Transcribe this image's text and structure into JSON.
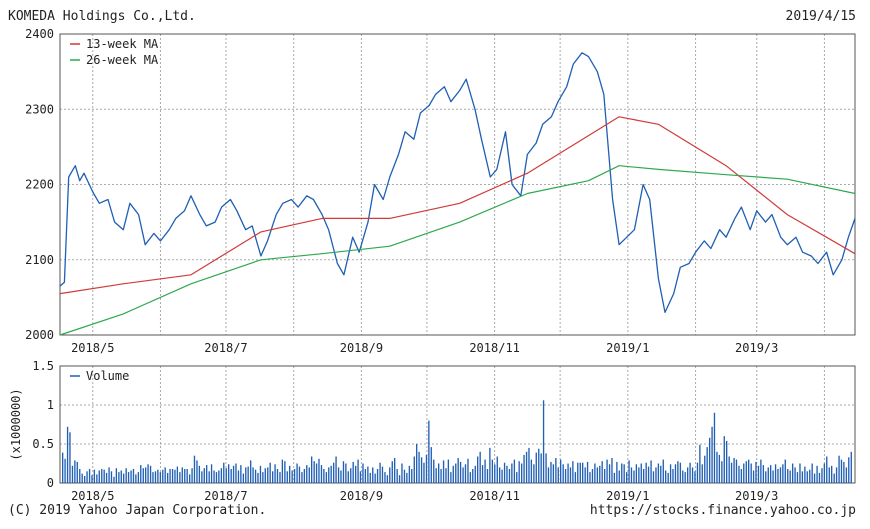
{
  "header": {
    "company": "KOMEDA Holdings Co.,Ltd.",
    "date": "2019/4/15"
  },
  "footer": {
    "copyright": "(C) 2019 Yahoo Japan Corporation.",
    "url": "https://stocks.finance.yahoo.co.jp"
  },
  "colors": {
    "price": "#1f5fb4",
    "ma13": "#d13a3a",
    "ma26": "#2ea84e",
    "volume": "#1f5fb4",
    "grid": "#aaaaaa",
    "frame": "#555555"
  },
  "chart_data": [
    {
      "type": "line",
      "x_ticks": [
        "2018/5",
        "2018/7",
        "2018/9",
        "2018/11",
        "2019/1",
        "2019/3"
      ],
      "y_ticks": [
        "2000",
        "2100",
        "2200",
        "2300",
        "2400"
      ],
      "ylim": [
        2000,
        2400
      ],
      "legend": [
        "13-week MA",
        "26-week MA"
      ],
      "x_range": [
        "2018/4/16",
        "2019/4/15"
      ],
      "series": [
        {
          "name": "Price",
          "x": [
            "2018/4/16",
            "2018/4/18",
            "2018/4/20",
            "2018/4/23",
            "2018/4/25",
            "2018/4/27",
            "2018/5/1",
            "2018/5/4",
            "2018/5/8",
            "2018/5/11",
            "2018/5/15",
            "2018/5/18",
            "2018/5/22",
            "2018/5/25",
            "2018/5/29",
            "2018/6/1",
            "2018/6/5",
            "2018/6/8",
            "2018/6/12",
            "2018/6/15",
            "2018/6/19",
            "2018/6/22",
            "2018/6/26",
            "2018/6/29",
            "2018/7/3",
            "2018/7/6",
            "2018/7/10",
            "2018/7/13",
            "2018/7/17",
            "2018/7/20",
            "2018/7/24",
            "2018/7/27",
            "2018/7/31",
            "2018/8/3",
            "2018/8/7",
            "2018/8/10",
            "2018/8/14",
            "2018/8/17",
            "2018/8/21",
            "2018/8/24",
            "2018/8/28",
            "2018/8/31",
            "2018/9/4",
            "2018/9/7",
            "2018/9/11",
            "2018/9/14",
            "2018/9/18",
            "2018/9/21",
            "2018/9/25",
            "2018/9/28",
            "2018/10/2",
            "2018/10/5",
            "2018/10/9",
            "2018/10/12",
            "2018/10/16",
            "2018/10/19",
            "2018/10/23",
            "2018/10/26",
            "2018/10/30",
            "2018/11/2",
            "2018/11/6",
            "2018/11/9",
            "2018/11/13",
            "2018/11/16",
            "2018/11/20",
            "2018/11/23",
            "2018/11/27",
            "2018/11/30",
            "2018/12/4",
            "2018/12/7",
            "2018/12/11",
            "2018/12/14",
            "2018/12/18",
            "2018/12/21",
            "2018/12/25",
            "2018/12/28",
            "2019/1/4",
            "2019/1/8",
            "2019/1/11",
            "2019/1/15",
            "2019/1/18",
            "2019/1/22",
            "2019/1/25",
            "2019/1/29",
            "2019/2/1",
            "2019/2/5",
            "2019/2/8",
            "2019/2/12",
            "2019/2/15",
            "2019/2/19",
            "2019/2/22",
            "2019/2/26",
            "2019/3/1",
            "2019/3/5",
            "2019/3/8",
            "2019/3/12",
            "2019/3/15",
            "2019/3/19",
            "2019/3/22",
            "2019/3/26",
            "2019/3/29",
            "2019/4/2",
            "2019/4/5",
            "2019/4/9",
            "2019/4/12",
            "2019/4/15"
          ],
          "y": [
            2065,
            2070,
            2210,
            2225,
            2205,
            2215,
            2190,
            2175,
            2180,
            2150,
            2140,
            2175,
            2160,
            2120,
            2135,
            2125,
            2140,
            2155,
            2165,
            2185,
            2160,
            2145,
            2150,
            2170,
            2180,
            2165,
            2140,
            2145,
            2105,
            2125,
            2160,
            2175,
            2180,
            2170,
            2185,
            2180,
            2160,
            2140,
            2095,
            2080,
            2130,
            2110,
            2150,
            2200,
            2180,
            2210,
            2240,
            2270,
            2260,
            2295,
            2305,
            2320,
            2330,
            2310,
            2325,
            2340,
            2300,
            2260,
            2210,
            2220,
            2270,
            2200,
            2185,
            2240,
            2255,
            2280,
            2290,
            2310,
            2330,
            2360,
            2375,
            2370,
            2350,
            2320,
            2180,
            2120,
            2140,
            2200,
            2180,
            2075,
            2030,
            2055,
            2090,
            2095,
            2110,
            2125,
            2115,
            2140,
            2130,
            2155,
            2170,
            2140,
            2165,
            2150,
            2160,
            2130,
            2120,
            2130,
            2110,
            2105,
            2095,
            2110,
            2080,
            2100,
            2130,
            2155
          ]
        },
        {
          "name": "13-week MA",
          "x": [
            "2018/4/16",
            "2018/5/15",
            "2018/6/15",
            "2018/7/17",
            "2018/8/14",
            "2018/9/14",
            "2018/10/16",
            "2018/11/16",
            "2018/12/14",
            "2018/12/28",
            "2019/1/15",
            "2019/2/15",
            "2019/3/15",
            "2019/4/15"
          ],
          "y": [
            2055,
            2068,
            2080,
            2137,
            2155,
            2155,
            2175,
            2215,
            2265,
            2290,
            2280,
            2225,
            2160,
            2108
          ]
        },
        {
          "name": "26-week MA",
          "x": [
            "2018/4/16",
            "2018/5/15",
            "2018/6/15",
            "2018/7/17",
            "2018/8/14",
            "2018/9/14",
            "2018/10/16",
            "2018/11/16",
            "2018/12/14",
            "2018/12/28",
            "2019/1/15",
            "2019/2/15",
            "2019/3/15",
            "2019/4/15"
          ],
          "y": [
            2000,
            2028,
            2068,
            2100,
            2108,
            2118,
            2150,
            2188,
            2205,
            2225,
            2220,
            2213,
            2207,
            2188
          ]
        }
      ]
    },
    {
      "type": "bar",
      "x_ticks": [
        "2018/5",
        "2018/7",
        "2018/9",
        "2018/11",
        "2019/1",
        "2019/3"
      ],
      "y_ticks": [
        "0",
        "0.5",
        "1",
        "1.5"
      ],
      "ylabel": "(x1000000)",
      "ylim": [
        0,
        1.5
      ],
      "legend": [
        "Volume"
      ],
      "x_range": [
        "2018/4/16",
        "2019/4/15"
      ],
      "series": [
        {
          "name": "Volume",
          "values": [
            0.39,
            0.31,
            0.72,
            0.65,
            0.22,
            0.29,
            0.27,
            0.18,
            0.12,
            0.09,
            0.15,
            0.18,
            0.1,
            0.17,
            0.11,
            0.16,
            0.18,
            0.17,
            0.13,
            0.2,
            0.15,
            0.08,
            0.19,
            0.14,
            0.16,
            0.12,
            0.19,
            0.14,
            0.16,
            0.18,
            0.11,
            0.14,
            0.23,
            0.19,
            0.2,
            0.24,
            0.22,
            0.14,
            0.15,
            0.17,
            0.14,
            0.17,
            0.2,
            0.13,
            0.18,
            0.18,
            0.17,
            0.21,
            0.14,
            0.2,
            0.18,
            0.18,
            0.11,
            0.19,
            0.35,
            0.29,
            0.22,
            0.15,
            0.19,
            0.23,
            0.15,
            0.24,
            0.16,
            0.14,
            0.16,
            0.19,
            0.26,
            0.19,
            0.24,
            0.18,
            0.22,
            0.25,
            0.16,
            0.23,
            0.12,
            0.2,
            0.21,
            0.29,
            0.2,
            0.17,
            0.13,
            0.22,
            0.14,
            0.19,
            0.2,
            0.26,
            0.15,
            0.24,
            0.18,
            0.14,
            0.3,
            0.28,
            0.15,
            0.22,
            0.16,
            0.18,
            0.25,
            0.21,
            0.14,
            0.18,
            0.23,
            0.2,
            0.34,
            0.28,
            0.25,
            0.31,
            0.23,
            0.18,
            0.14,
            0.2,
            0.22,
            0.26,
            0.34,
            0.2,
            0.16,
            0.28,
            0.25,
            0.15,
            0.19,
            0.27,
            0.22,
            0.3,
            0.15,
            0.25,
            0.18,
            0.21,
            0.13,
            0.2,
            0.12,
            0.18,
            0.26,
            0.21,
            0.14,
            0.1,
            0.2,
            0.28,
            0.32,
            0.18,
            0.1,
            0.25,
            0.17,
            0.13,
            0.22,
            0.18,
            0.34,
            0.5,
            0.4,
            0.33,
            0.26,
            0.36,
            0.8,
            0.46,
            0.3,
            0.19,
            0.25,
            0.18,
            0.29,
            0.19,
            0.3,
            0.14,
            0.22,
            0.25,
            0.32,
            0.27,
            0.2,
            0.24,
            0.31,
            0.14,
            0.18,
            0.22,
            0.34,
            0.4,
            0.23,
            0.3,
            0.18,
            0.45,
            0.3,
            0.24,
            0.34,
            0.2,
            0.17,
            0.26,
            0.22,
            0.18,
            0.25,
            0.3,
            0.14,
            0.28,
            0.25,
            0.36,
            0.4,
            0.45,
            0.3,
            0.24,
            0.39,
            0.44,
            0.38,
            1.06,
            0.38,
            0.2,
            0.27,
            0.24,
            0.32,
            0.2,
            0.3,
            0.24,
            0.18,
            0.25,
            0.2,
            0.28,
            0.14,
            0.26,
            0.26,
            0.26,
            0.2,
            0.27,
            0.14,
            0.18,
            0.25,
            0.2,
            0.22,
            0.28,
            0.18,
            0.3,
            0.24,
            0.32,
            0.13,
            0.27,
            0.16,
            0.25,
            0.24,
            0.14,
            0.29,
            0.2,
            0.16,
            0.24,
            0.2,
            0.25,
            0.18,
            0.26,
            0.21,
            0.29,
            0.15,
            0.2,
            0.25,
            0.22,
            0.3,
            0.16,
            0.13,
            0.24,
            0.18,
            0.24,
            0.28,
            0.26,
            0.16,
            0.14,
            0.2,
            0.26,
            0.2,
            0.15,
            0.26,
            0.49,
            0.24,
            0.35,
            0.46,
            0.58,
            0.72,
            0.9,
            0.4,
            0.36,
            0.28,
            0.6,
            0.54,
            0.34,
            0.26,
            0.32,
            0.3,
            0.22,
            0.18,
            0.25,
            0.28,
            0.3,
            0.25,
            0.16,
            0.27,
            0.22,
            0.3,
            0.23,
            0.15,
            0.2,
            0.23,
            0.16,
            0.24,
            0.18,
            0.2,
            0.24,
            0.3,
            0.18,
            0.16,
            0.25,
            0.2,
            0.14,
            0.25,
            0.15,
            0.21,
            0.15,
            0.17,
            0.25,
            0.12,
            0.22,
            0.13,
            0.19,
            0.25,
            0.34,
            0.2,
            0.22,
            0.12,
            0.2,
            0.35,
            0.3,
            0.27,
            0.2,
            0.33,
            0.4
          ]
        }
      ]
    }
  ]
}
